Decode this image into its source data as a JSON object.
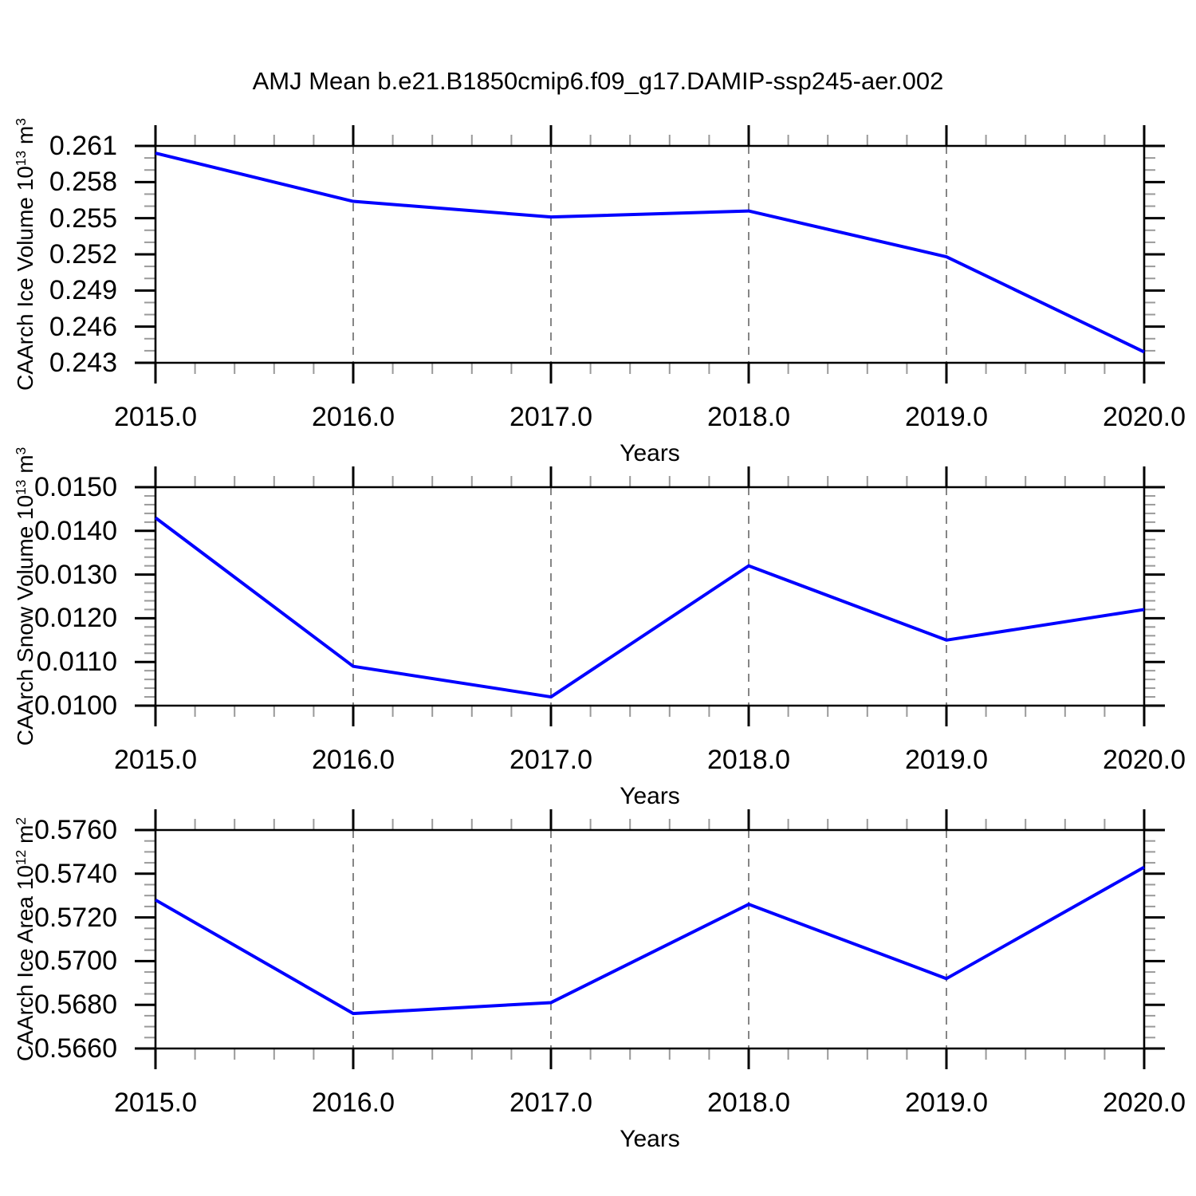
{
  "title": "AMJ Mean b.e21.B1850cmip6.f09_g17.DAMIP-ssp245-aer.002",
  "x_axis": {
    "label": "Years",
    "xlim": [
      2015,
      2020
    ],
    "ticks": [
      2015,
      2016,
      2017,
      2018,
      2019,
      2020
    ],
    "tick_labels": [
      "2015.0",
      "2016.0",
      "2017.0",
      "2018.0",
      "2019.0",
      "2020.0"
    ],
    "minor_step": 0.2,
    "grid_lines": [
      2016,
      2017,
      2018,
      2019
    ]
  },
  "style": {
    "line_color": "#0000ff",
    "frame_color": "#000000",
    "minor_tick_color": "#9a9a9a",
    "grid_color": "#787878"
  },
  "chart_data": [
    {
      "type": "line",
      "ylabel": "CAArch Ice Volume 10^13 m^3",
      "ylabel_parts": [
        {
          "t": "CAArch Ice Volume 10"
        },
        {
          "t": "13",
          "sup": true
        },
        {
          "t": " m"
        },
        {
          "t": "3",
          "sup": true
        }
      ],
      "x": [
        2015,
        2016,
        2017,
        2018,
        2019,
        2020
      ],
      "values": [
        0.2604,
        0.2564,
        0.2551,
        0.2556,
        0.2518,
        0.2439
      ],
      "ylim": [
        0.243,
        0.261
      ],
      "yticks": [
        0.243,
        0.246,
        0.249,
        0.252,
        0.255,
        0.258,
        0.261
      ],
      "ytick_labels": [
        "0.243",
        "0.246",
        "0.249",
        "0.252",
        "0.255",
        "0.258",
        "0.261"
      ],
      "yminor_step": 0.001
    },
    {
      "type": "line",
      "ylabel": "CAArch Snow Volume 10^13 m^3",
      "ylabel_parts": [
        {
          "t": "CAArch Snow Volume 10"
        },
        {
          "t": "13",
          "sup": true
        },
        {
          "t": " m"
        },
        {
          "t": "3",
          "sup": true
        }
      ],
      "x": [
        2015,
        2016,
        2017,
        2018,
        2019,
        2020
      ],
      "values": [
        0.0143,
        0.0109,
        0.0102,
        0.0132,
        0.0115,
        0.0122
      ],
      "ylim": [
        0.01,
        0.015
      ],
      "yticks": [
        0.01,
        0.011,
        0.012,
        0.013,
        0.014,
        0.015
      ],
      "ytick_labels": [
        "0.0100",
        "0.0110",
        "0.0120",
        "0.0130",
        "0.0140",
        "0.0150"
      ],
      "yminor_step": 0.0002
    },
    {
      "type": "line",
      "ylabel": "CAArch Ice Area 10^12 m^2",
      "ylabel_parts": [
        {
          "t": "CAArch Ice Area 10"
        },
        {
          "t": "12",
          "sup": true
        },
        {
          "t": " m"
        },
        {
          "t": "2",
          "sup": true
        }
      ],
      "x": [
        2015,
        2016,
        2017,
        2018,
        2019,
        2020
      ],
      "values": [
        0.5728,
        0.5676,
        0.5681,
        0.5726,
        0.5692,
        0.5743
      ],
      "ylim": [
        0.566,
        0.576
      ],
      "yticks": [
        0.566,
        0.568,
        0.57,
        0.572,
        0.574,
        0.576
      ],
      "ytick_labels": [
        "0.5660",
        "0.5680",
        "0.5700",
        "0.5720",
        "0.5740",
        "0.5760"
      ],
      "yminor_step": 0.0005
    }
  ]
}
